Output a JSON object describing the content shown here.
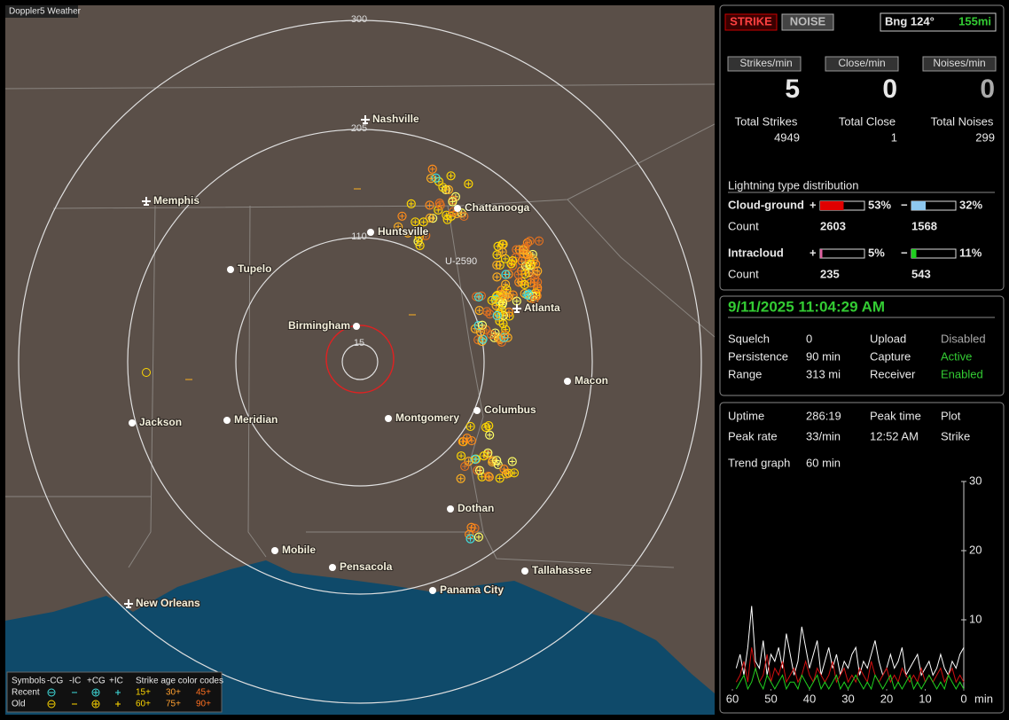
{
  "map": {
    "title": "Doppler5 Weather",
    "range_rings": [
      "300",
      "205",
      "110",
      "15"
    ],
    "cities": [
      "Nashville",
      "Memphis",
      "Chattanooga",
      "Huntsville",
      "Tupelo",
      "Birmingham",
      "Atlanta",
      "Macon",
      "Montgomery",
      "Columbus",
      "Jackson",
      "Meridian",
      "Dothan",
      "Mobile",
      "Pensacola",
      "Tallahassee",
      "Panama City",
      "New Orleans"
    ],
    "marker": "U-2590",
    "legend": {
      "header": [
        "Symbols",
        "-CG",
        "-IC",
        "+CG",
        "+IC",
        "Strike age color codes"
      ],
      "recent": {
        "label": "Recent",
        "ages": [
          "15+",
          "30+",
          "45+"
        ]
      },
      "old": {
        "label": "Old",
        "ages": [
          "60+",
          "75+",
          "90+"
        ]
      }
    }
  },
  "mode_buttons": [
    "STRIKE",
    "NOISE"
  ],
  "bearing": {
    "label": "Bng 124°",
    "distance": "155mi"
  },
  "rates": [
    {
      "label": "Strikes/min",
      "value": 5
    },
    {
      "label": "Close/min",
      "value": 0
    },
    {
      "label": "Noises/min",
      "value": 0
    }
  ],
  "totals": [
    {
      "label": "Total Strikes",
      "value": 4949
    },
    {
      "label": "Total Close",
      "value": 1
    },
    {
      "label": "Total Noises",
      "value": 299
    }
  ],
  "distribution": {
    "title": "Lightning type distribution",
    "rows": [
      {
        "label": "Cloud-ground",
        "count_label": "Count",
        "positive": {
          "sign": "+",
          "value": 53,
          "value_label": "53%",
          "color": "#e00000",
          "count": 2603
        },
        "negative": {
          "sign": "−",
          "value": 32,
          "value_label": "32%",
          "color": "#8ec8f0",
          "count": 1568
        }
      },
      {
        "label": "Intracloud",
        "count_label": "Count",
        "positive": {
          "sign": "+",
          "value": 5,
          "value_label": "5%",
          "color": "#e060a0",
          "count": 235
        },
        "negative": {
          "sign": "−",
          "value": 11,
          "value_label": "11%",
          "color": "#20d020",
          "count": 543
        }
      }
    ]
  },
  "timestamp": "9/11/2025 11:04:29 AM",
  "status": [
    [
      "Squelch",
      0,
      "Upload",
      "Disabled"
    ],
    [
      "Persistence",
      "90 min",
      "Capture",
      "Active"
    ],
    [
      "Range",
      "313 mi",
      "Receiver",
      "Enabled"
    ]
  ],
  "stats": [
    [
      "Uptime",
      "286:19",
      "Peak time",
      "Plot"
    ],
    [
      "Peak rate",
      "33/min",
      "12:52 AM",
      "Strike"
    ],
    [
      "Trend graph",
      "60 min"
    ]
  ],
  "chart_data": {
    "type": "line",
    "xlabel": "min",
    "x": [
      59,
      58,
      57,
      56,
      55,
      54,
      53,
      52,
      51,
      50,
      49,
      48,
      47,
      46,
      45,
      44,
      43,
      42,
      41,
      40,
      39,
      38,
      37,
      36,
      35,
      34,
      33,
      32,
      31,
      30,
      29,
      28,
      27,
      26,
      25,
      24,
      23,
      22,
      21,
      20,
      19,
      18,
      17,
      16,
      15,
      14,
      13,
      12,
      11,
      10,
      9,
      8,
      7,
      6,
      5,
      4,
      3,
      2,
      1,
      0
    ],
    "xlim": [
      60,
      0
    ],
    "xticks": [
      60,
      50,
      40,
      30,
      20,
      10,
      0
    ],
    "ylim": [
      0,
      30
    ],
    "yticks": [
      10,
      20,
      30
    ],
    "series": [
      {
        "color": "#ffffff",
        "values": [
          3,
          5,
          2,
          6,
          12,
          4,
          3,
          7,
          2,
          5,
          4,
          6,
          3,
          8,
          5,
          2,
          4,
          9,
          6,
          3,
          5,
          7,
          2,
          4,
          6,
          3,
          5,
          2,
          4,
          3,
          5,
          6,
          2,
          4,
          3,
          5,
          7,
          4,
          2,
          3,
          5,
          3,
          4,
          6,
          2,
          3,
          4,
          5,
          2,
          3,
          4,
          2,
          3,
          5,
          3,
          2,
          4,
          3,
          5,
          6
        ]
      },
      {
        "color": "#d01010",
        "values": [
          1,
          2,
          4,
          1,
          6,
          3,
          1,
          2,
          5,
          1,
          3,
          2,
          4,
          1,
          2,
          3,
          1,
          2,
          4,
          2,
          1,
          3,
          2,
          1,
          2,
          4,
          1,
          2,
          3,
          1,
          2,
          1,
          3,
          2,
          1,
          4,
          2,
          1,
          2,
          3,
          1,
          2,
          1,
          3,
          2,
          1,
          2,
          1,
          3,
          1,
          2,
          1,
          2,
          3,
          1,
          2,
          3,
          1,
          2,
          1
        ]
      },
      {
        "color": "#20d020",
        "values": [
          0,
          1,
          2,
          0,
          1,
          3,
          1,
          0,
          2,
          1,
          0,
          1,
          2,
          0,
          1,
          1,
          0,
          2,
          1,
          0,
          1,
          2,
          0,
          1,
          0,
          1,
          2,
          0,
          1,
          0,
          1,
          2,
          1,
          0,
          1,
          0,
          2,
          1,
          0,
          1,
          2,
          0,
          1,
          0,
          1,
          2,
          0,
          1,
          0,
          1,
          2,
          1,
          0,
          1,
          0,
          2,
          1,
          0,
          1,
          0
        ]
      }
    ]
  }
}
